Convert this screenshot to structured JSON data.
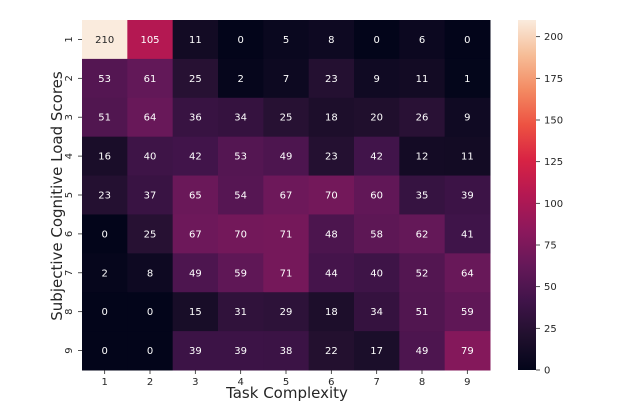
{
  "chart_data": {
    "type": "heatmap",
    "title": "",
    "xlabel": "Task Complexity",
    "ylabel": "Subjective Cognitive Load Scores",
    "x": [
      "1",
      "2",
      "3",
      "4",
      "5",
      "6",
      "7",
      "8",
      "9"
    ],
    "y": [
      "1",
      "2",
      "3",
      "4",
      "5",
      "6",
      "7",
      "8",
      "9"
    ],
    "values": [
      [
        210,
        105,
        11,
        0,
        5,
        8,
        0,
        6,
        0
      ],
      [
        53,
        61,
        25,
        2,
        7,
        23,
        9,
        11,
        1
      ],
      [
        51,
        64,
        36,
        34,
        25,
        18,
        20,
        26,
        9
      ],
      [
        16,
        40,
        42,
        53,
        49,
        23,
        42,
        12,
        11
      ],
      [
        23,
        37,
        65,
        54,
        67,
        70,
        60,
        35,
        39
      ],
      [
        0,
        25,
        67,
        70,
        71,
        48,
        58,
        62,
        41
      ],
      [
        2,
        8,
        49,
        59,
        71,
        44,
        40,
        52,
        64
      ],
      [
        0,
        0,
        15,
        31,
        29,
        18,
        34,
        51,
        59
      ],
      [
        0,
        0,
        39,
        39,
        38,
        22,
        17,
        49,
        79
      ]
    ],
    "colorbar": {
      "range": [
        0,
        210
      ],
      "ticks": [
        0,
        25,
        50,
        75,
        100,
        125,
        150,
        175,
        200
      ],
      "colormap": "rocket"
    },
    "annotations": true,
    "grid": false
  }
}
